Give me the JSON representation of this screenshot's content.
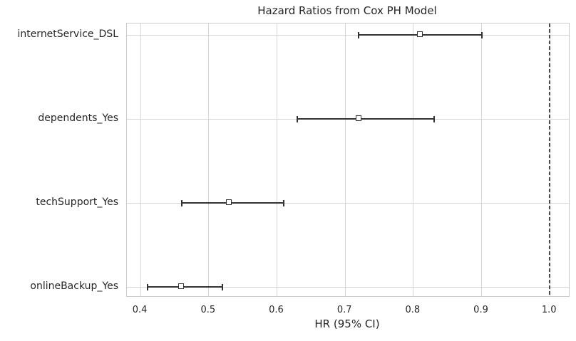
{
  "chart_data": {
    "type": "scatter",
    "subtype": "forest-plot-errorbar",
    "title": "Hazard Ratios from Cox PH Model",
    "xlabel": "HR (95% CI)",
    "ylabel": "",
    "categories": [
      "internetService_DSL",
      "dependents_Yes",
      "techSupport_Yes",
      "onlineBackup_Yes"
    ],
    "series": [
      {
        "name": "Hazard Ratio",
        "values": [
          0.81,
          0.72,
          0.53,
          0.46
        ],
        "ci_low": [
          0.72,
          0.63,
          0.46,
          0.41
        ],
        "ci_high": [
          0.9,
          0.83,
          0.61,
          0.52
        ]
      }
    ],
    "reference_line": {
      "x": 1.0,
      "style": "dashed"
    },
    "x_ticks": [
      0.4,
      0.5,
      0.6,
      0.7,
      0.8,
      0.9,
      1.0
    ],
    "x_tick_labels": [
      "0.4",
      "0.5",
      "0.6",
      "0.7",
      "0.8",
      "0.9",
      "1.0"
    ],
    "xlim": [
      0.38,
      1.028
    ],
    "grid": true,
    "legend": false,
    "marker": "open-square",
    "colors": {
      "error_bar": "#323232",
      "marker_face": "#ffffff",
      "grid": "#d6d6d6",
      "spine": "#cccccc",
      "reference_line": "#4a4a4a",
      "text": "#262626",
      "background": "#ffffff"
    }
  }
}
